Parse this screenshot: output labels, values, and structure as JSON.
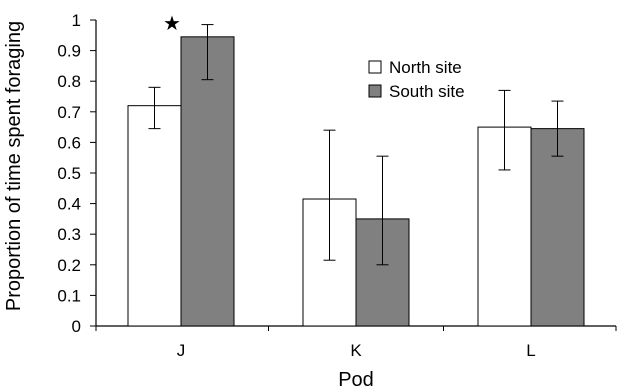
{
  "chart_data": {
    "type": "bar",
    "categories": [
      "J",
      "K",
      "L"
    ],
    "series": [
      {
        "name": "North site",
        "color": "#ffffff",
        "values": [
          0.72,
          0.415,
          0.65
        ],
        "error_low": [
          0.645,
          0.215,
          0.51
        ],
        "error_high": [
          0.78,
          0.64,
          0.77
        ]
      },
      {
        "name": "South site",
        "color": "#808080",
        "values": [
          0.945,
          0.35,
          0.645
        ],
        "error_low": [
          0.805,
          0.2,
          0.555
        ],
        "error_high": [
          0.985,
          0.555,
          0.735
        ]
      }
    ],
    "xlabel": "Pod",
    "ylabel": "Proportion of time spent foraging",
    "ylim": [
      0,
      1
    ],
    "yticks": [
      "0",
      "0.1",
      "0.2",
      "0.3",
      "0.4",
      "0.5",
      "0.6",
      "0.7",
      "0.8",
      "0.9",
      "1"
    ],
    "grid": false,
    "legend_position": "top-right",
    "annotations": [
      {
        "category": "J",
        "text": "★"
      }
    ]
  }
}
